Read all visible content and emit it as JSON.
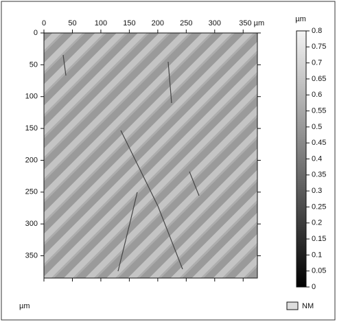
{
  "chart_data": {
    "type": "surface-map",
    "xticks": [
      0,
      50,
      100,
      150,
      200,
      250,
      300,
      {
        "value": 350,
        "label": "350 µm"
      }
    ],
    "xlim": [
      0,
      375
    ],
    "yticks": [
      0,
      50,
      100,
      150,
      200,
      250,
      300,
      350
    ],
    "ylim": [
      0,
      385
    ],
    "y_unit": "µm",
    "colorbar": {
      "unit": "µm",
      "lim": [
        0,
        0.8
      ],
      "ticks": [
        0.8,
        0.75,
        0.7,
        0.65,
        0.6,
        0.55,
        0.5,
        0.45,
        0.4,
        0.35,
        0.3,
        0.25,
        0.2,
        0.15,
        0.1,
        0.05,
        0
      ]
    },
    "legend": "NM"
  }
}
